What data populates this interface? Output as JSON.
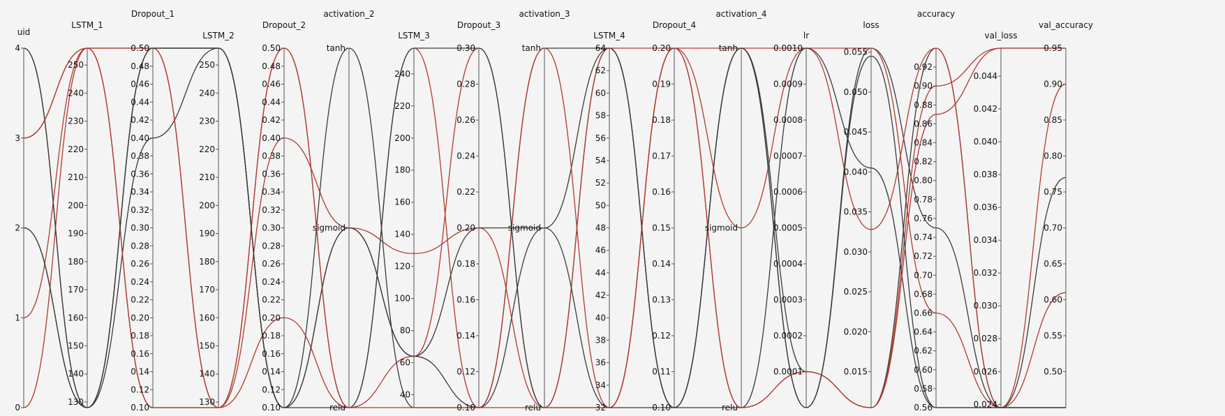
{
  "chart_data": {
    "type": "parallel_coordinates",
    "colors": {
      "red": "#b03a2e",
      "black": "#3a3a3a"
    },
    "axes": [
      {
        "name": "uid",
        "min": 0,
        "max": 4,
        "ticks": [
          "0",
          "1",
          "2",
          "3",
          "4"
        ]
      },
      {
        "name": "LSTM_1",
        "min": 128,
        "max": 256,
        "ticks": [
          "130",
          "140",
          "150",
          "160",
          "170",
          "180",
          "190",
          "200",
          "210",
          "220",
          "230",
          "240",
          "250"
        ]
      },
      {
        "name": "Dropout_1",
        "min": 0.1,
        "max": 0.5,
        "ticks": [
          "0.10",
          "0.12",
          "0.14",
          "0.16",
          "0.18",
          "0.20",
          "0.22",
          "0.24",
          "0.26",
          "0.28",
          "0.30",
          "0.32",
          "0.34",
          "0.36",
          "0.38",
          "0.40",
          "0.42",
          "0.44",
          "0.46",
          "0.48",
          "0.50"
        ]
      },
      {
        "name": "LSTM_2",
        "min": 128,
        "max": 256,
        "ticks": [
          "130",
          "140",
          "150",
          "160",
          "170",
          "180",
          "190",
          "200",
          "210",
          "220",
          "230",
          "240",
          "250"
        ]
      },
      {
        "name": "Dropout_2",
        "min": 0.1,
        "max": 0.5,
        "ticks": [
          "0.10",
          "0.12",
          "0.14",
          "0.16",
          "0.18",
          "0.20",
          "0.22",
          "0.24",
          "0.26",
          "0.28",
          "0.30",
          "0.32",
          "0.34",
          "0.36",
          "0.38",
          "0.40",
          "0.42",
          "0.44",
          "0.46",
          "0.48",
          "0.50"
        ]
      },
      {
        "name": "activation_2",
        "categorical": [
          "relu",
          "sigmoid",
          "tanh"
        ]
      },
      {
        "name": "LSTM_3",
        "min": 32,
        "max": 256,
        "ticks": [
          "40",
          "60",
          "80",
          "100",
          "120",
          "140",
          "160",
          "180",
          "200",
          "220",
          "240"
        ]
      },
      {
        "name": "Dropout_3",
        "min": 0.1,
        "max": 0.3,
        "ticks": [
          "0.10",
          "0.12",
          "0.14",
          "0.16",
          "0.18",
          "0.20",
          "0.22",
          "0.24",
          "0.26",
          "0.28",
          "0.30"
        ]
      },
      {
        "name": "activation_3",
        "categorical": [
          "relu",
          "sigmoid",
          "tanh"
        ]
      },
      {
        "name": "LSTM_4",
        "min": 32,
        "max": 64,
        "ticks": [
          "32",
          "34",
          "36",
          "38",
          "40",
          "42",
          "44",
          "46",
          "48",
          "50",
          "52",
          "54",
          "56",
          "58",
          "60",
          "62",
          "64"
        ]
      },
      {
        "name": "Dropout_4",
        "min": 0.1,
        "max": 0.2,
        "ticks": [
          "0.10",
          "0.11",
          "0.12",
          "0.13",
          "0.14",
          "0.15",
          "0.16",
          "0.17",
          "0.18",
          "0.19",
          "0.20"
        ]
      },
      {
        "name": "activation_4",
        "categorical": [
          "relu",
          "sigmoid",
          "tanh"
        ]
      },
      {
        "name": "lr",
        "min": 0.0,
        "max": 0.001,
        "ticks": [
          "0.0001",
          "0.0002",
          "0.0003",
          "0.0004",
          "0.0005",
          "0.0006",
          "0.0007",
          "0.0008",
          "0.0009",
          "0.0010"
        ]
      },
      {
        "name": "loss",
        "min": 0.0105,
        "max": 0.0555,
        "ticks": [
          "0.015",
          "0.020",
          "0.025",
          "0.030",
          "0.035",
          "0.040",
          "0.045",
          "0.050",
          "0.055"
        ]
      },
      {
        "name": "accuracy",
        "min": 0.56,
        "max": 0.94,
        "ticks": [
          "0.56",
          "0.58",
          "0.60",
          "0.62",
          "0.64",
          "0.66",
          "0.68",
          "0.70",
          "0.72",
          "0.74",
          "0.76",
          "0.78",
          "0.80",
          "0.82",
          "0.84",
          "0.86",
          "0.88",
          "0.90",
          "0.92"
        ]
      },
      {
        "name": "val_loss",
        "min": 0.0238,
        "max": 0.0457,
        "ticks": [
          "0.024",
          "0.026",
          "0.028",
          "0.030",
          "0.032",
          "0.034",
          "0.036",
          "0.038",
          "0.040",
          "0.042",
          "0.044"
        ]
      },
      {
        "name": "val_accuracy",
        "min": 0.45,
        "max": 0.95,
        "ticks": [
          "0.50",
          "0.55",
          "0.60",
          "0.65",
          "0.70",
          "0.75",
          "0.80",
          "0.85",
          "0.90",
          "0.95"
        ]
      }
    ],
    "series": [
      {
        "color": "black",
        "values": [
          4,
          128,
          0.5,
          256,
          0.1,
          "sigmoid",
          64,
          0.1,
          "sigmoid",
          64,
          0.1,
          "tanh",
          0.0,
          0.0555,
          0.75,
          0.0238,
          0.45
        ]
      },
      {
        "color": "red",
        "values": [
          3,
          256,
          0.1,
          128,
          0.4,
          "sigmoid",
          128,
          0.2,
          "relu",
          32,
          0.2,
          "sigmoid",
          0.001,
          0.0555,
          0.66,
          0.0238,
          0.9
        ]
      },
      {
        "color": "black",
        "values": [
          2,
          128,
          0.4,
          256,
          0.1,
          "tanh",
          32,
          0.1,
          "tanh",
          64,
          0.1,
          "tanh",
          0.0001,
          0.0105,
          0.94,
          0.0238,
          0.77
        ]
      },
      {
        "color": "red",
        "values": [
          1,
          256,
          0.5,
          128,
          0.2,
          "relu",
          64,
          0.3,
          "relu",
          32,
          0.2,
          "relu",
          0.0001,
          0.0105,
          0.9,
          0.0457,
          0.95
        ]
      },
      {
        "color": "red",
        "values": [
          0,
          256,
          0.5,
          128,
          0.5,
          "relu",
          256,
          0.1,
          "tanh",
          32,
          0.2,
          "tanh",
          0.001,
          0.0328,
          0.94,
          0.0238,
          0.61
        ]
      },
      {
        "color": "black",
        "values": [
          4,
          128,
          0.5,
          256,
          0.1,
          "relu",
          256,
          0.3,
          "relu",
          64,
          0.1,
          "relu",
          0.001,
          0.0405,
          0.56,
          0.0238,
          0.45
        ]
      },
      {
        "color": "red",
        "values": [
          3,
          256,
          0.1,
          128,
          0.5,
          "relu",
          32,
          0.1,
          "relu",
          64,
          0.2,
          "relu",
          0.0001,
          0.0105,
          0.87,
          0.0457,
          0.95
        ]
      },
      {
        "color": "black",
        "values": [
          2,
          128,
          0.5,
          256,
          0.1,
          "sigmoid",
          64,
          0.2,
          "sigmoid",
          32,
          0.1,
          "tanh",
          0.0,
          0.0545,
          0.56,
          0.0238,
          0.45
        ]
      }
    ]
  }
}
